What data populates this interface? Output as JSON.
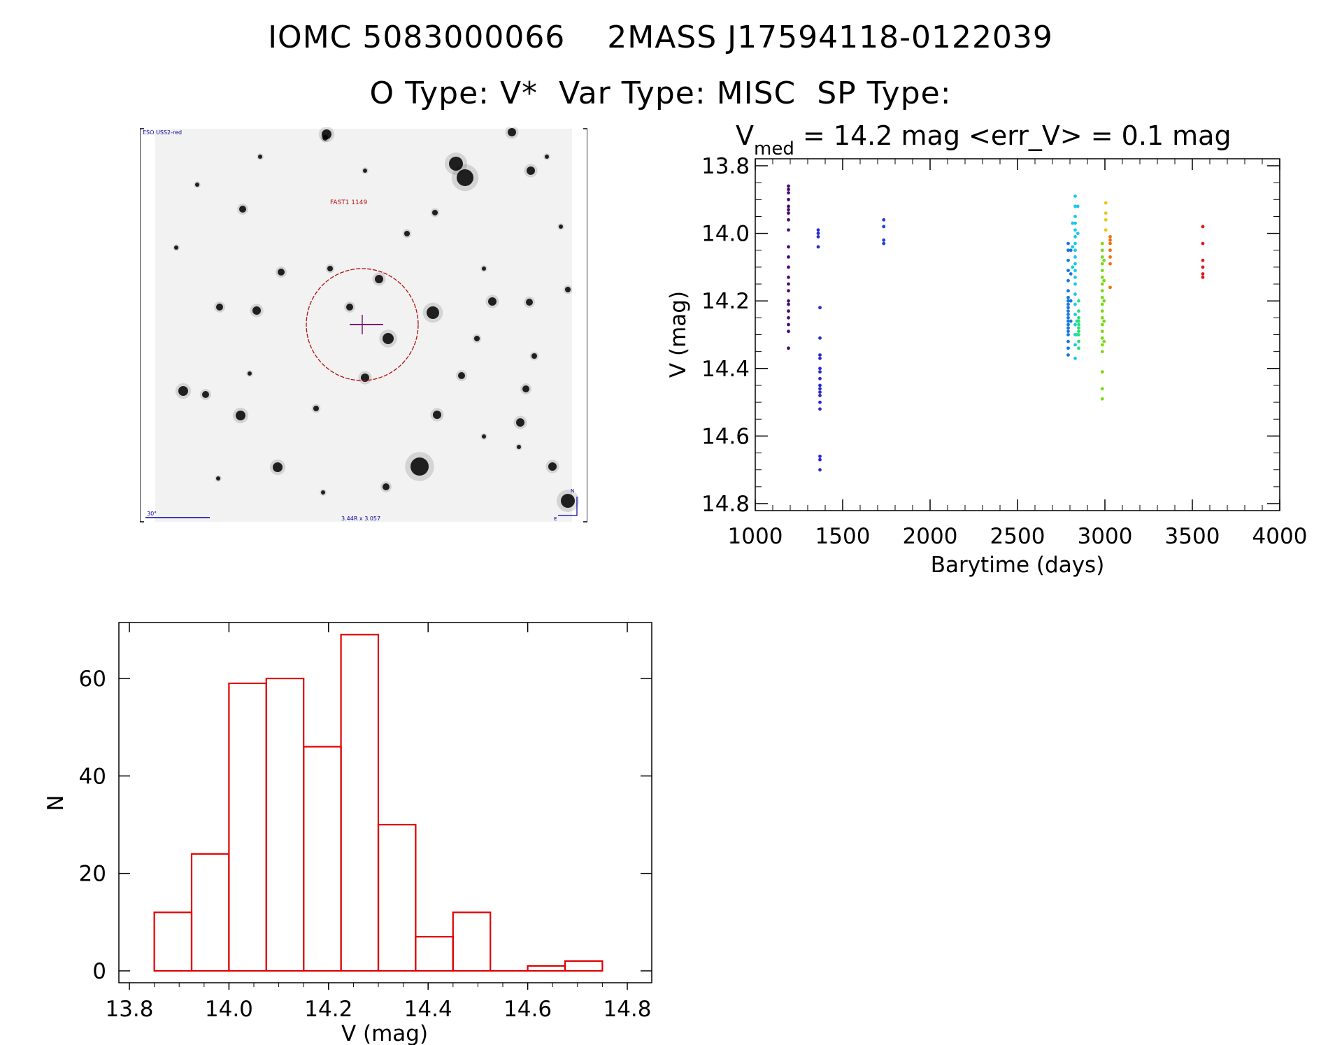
{
  "header": {
    "title_line1": "IOMC 5083000066    2MASS J17594118-0122039",
    "title_line2": "O Type: V*  Var Type: MISC  SP Type:"
  },
  "finder_chart": {
    "survey_label": "ESO USS2-red",
    "target_label": "FAST1 1149",
    "scale_label": "30\"",
    "size_label": "3.44R x 3.057",
    "north_label": "N",
    "east_label": "E",
    "colors": {
      "circle": "#b01010",
      "marker": "#7a1a7a",
      "labels": "#0000a0"
    }
  },
  "chart_data": [
    {
      "type": "scatter",
      "title_prefix": "V",
      "title_subscript": "med",
      "title_rest": " = 14.2 mag <err_V> = 0.1 mag",
      "xlabel": "Barytime (days)",
      "ylabel": "V (mag)",
      "xlim": [
        1000,
        4000
      ],
      "ylim": [
        14.8,
        13.8
      ],
      "y_inverted": true,
      "xticks": [
        1000,
        1500,
        2000,
        2500,
        3000,
        3500,
        4000
      ],
      "xtick_labels": [
        "1000",
        "1500",
        "2000",
        "2500",
        "3000",
        "3500",
        "4000"
      ],
      "yticks": [
        13.8,
        14.0,
        14.2,
        14.4,
        14.6,
        14.8
      ],
      "ytick_labels": [
        "13.8",
        "14.0",
        "14.2",
        "14.4",
        "14.6",
        "14.8"
      ],
      "color_scale": "rainbow by time (purple early → red late)",
      "series": [
        {
          "color": "#4b0a6e",
          "points": [
            [
              1190,
              13.86
            ],
            [
              1190,
              13.87
            ],
            [
              1190,
              13.88
            ],
            [
              1190,
              13.9
            ],
            [
              1190,
              13.92
            ],
            [
              1190,
              13.93
            ],
            [
              1190,
              13.94
            ],
            [
              1190,
              13.96
            ],
            [
              1190,
              13.99
            ],
            [
              1190,
              14.04
            ],
            [
              1190,
              14.07
            ],
            [
              1190,
              14.1
            ],
            [
              1190,
              14.13
            ],
            [
              1190,
              14.15
            ],
            [
              1190,
              14.17
            ],
            [
              1190,
              14.2
            ],
            [
              1190,
              14.21
            ],
            [
              1190,
              14.23
            ],
            [
              1190,
              14.25
            ],
            [
              1190,
              14.27
            ],
            [
              1190,
              14.29
            ],
            [
              1190,
              14.34
            ]
          ]
        },
        {
          "color": "#2a2ad0",
          "points": [
            [
              1360,
              13.99
            ],
            [
              1360,
              14.0
            ],
            [
              1360,
              14.01
            ],
            [
              1360,
              14.04
            ],
            [
              1370,
              14.22
            ],
            [
              1370,
              14.31
            ],
            [
              1370,
              14.36
            ],
            [
              1370,
              14.37
            ],
            [
              1370,
              14.4
            ],
            [
              1370,
              14.41
            ],
            [
              1370,
              14.43
            ],
            [
              1370,
              14.45
            ],
            [
              1370,
              14.46
            ],
            [
              1370,
              14.47
            ],
            [
              1370,
              14.48
            ],
            [
              1370,
              14.5
            ],
            [
              1370,
              14.52
            ],
            [
              1370,
              14.66
            ],
            [
              1370,
              14.67
            ],
            [
              1370,
              14.7
            ]
          ]
        },
        {
          "color": "#1a40d8",
          "points": [
            [
              1735,
              13.96
            ],
            [
              1735,
              13.98
            ],
            [
              1735,
              14.02
            ],
            [
              1735,
              14.03
            ]
          ]
        },
        {
          "color": "#1478e0",
          "points": [
            [
              2790,
              14.03
            ],
            [
              2790,
              14.05
            ],
            [
              2790,
              14.08
            ],
            [
              2790,
              14.11
            ],
            [
              2790,
              14.14
            ],
            [
              2790,
              14.17
            ],
            [
              2790,
              14.19
            ],
            [
              2790,
              14.2
            ],
            [
              2790,
              14.21
            ],
            [
              2790,
              14.22
            ],
            [
              2790,
              14.23
            ],
            [
              2790,
              14.24
            ],
            [
              2790,
              14.25
            ],
            [
              2790,
              14.26
            ],
            [
              2790,
              14.27
            ],
            [
              2790,
              14.28
            ],
            [
              2790,
              14.29
            ],
            [
              2790,
              14.3
            ],
            [
              2790,
              14.32
            ],
            [
              2790,
              14.34
            ],
            [
              2790,
              14.36
            ],
            [
              2805,
              14.05
            ],
            [
              2805,
              14.12
            ],
            [
              2805,
              14.2
            ],
            [
              2805,
              14.26
            ]
          ]
        },
        {
          "color": "#18c8f0",
          "points": [
            [
              2830,
              13.89
            ],
            [
              2830,
              13.92
            ],
            [
              2830,
              13.95
            ],
            [
              2830,
              13.97
            ],
            [
              2830,
              13.99
            ],
            [
              2830,
              14.01
            ],
            [
              2830,
              14.03
            ],
            [
              2830,
              14.05
            ],
            [
              2830,
              14.07
            ],
            [
              2830,
              14.09
            ],
            [
              2830,
              14.11
            ],
            [
              2830,
              14.13
            ],
            [
              2830,
              14.15
            ],
            [
              2830,
              14.18
            ],
            [
              2830,
              14.21
            ],
            [
              2830,
              14.24
            ],
            [
              2830,
              14.27
            ],
            [
              2830,
              14.3
            ],
            [
              2830,
              14.33
            ],
            [
              2830,
              14.37
            ],
            [
              2815,
              13.97
            ],
            [
              2815,
              14.04
            ],
            [
              2815,
              14.1
            ],
            [
              2845,
              13.92
            ],
            [
              2845,
              14.0
            ]
          ]
        },
        {
          "color": "#26e07a",
          "points": [
            [
              2850,
              14.2
            ],
            [
              2850,
              14.23
            ],
            [
              2850,
              14.25
            ],
            [
              2850,
              14.26
            ],
            [
              2850,
              14.27
            ],
            [
              2850,
              14.28
            ],
            [
              2850,
              14.29
            ],
            [
              2850,
              14.3
            ],
            [
              2850,
              14.32
            ],
            [
              2850,
              14.34
            ],
            [
              2840,
              14.26
            ],
            [
              2840,
              14.3
            ]
          ]
        },
        {
          "color": "#7ad818",
          "points": [
            [
              2985,
              14.03
            ],
            [
              2985,
              14.05
            ],
            [
              2985,
              14.07
            ],
            [
              2985,
              14.09
            ],
            [
              2985,
              14.11
            ],
            [
              2985,
              14.13
            ],
            [
              2985,
              14.15
            ],
            [
              2985,
              14.17
            ],
            [
              2985,
              14.19
            ],
            [
              2985,
              14.21
            ],
            [
              2985,
              14.23
            ],
            [
              2985,
              14.25
            ],
            [
              2985,
              14.27
            ],
            [
              2985,
              14.29
            ],
            [
              2985,
              14.31
            ],
            [
              2985,
              14.33
            ],
            [
              2985,
              14.35
            ],
            [
              2985,
              14.41
            ],
            [
              2985,
              14.46
            ],
            [
              2985,
              14.49
            ],
            [
              2995,
              14.08
            ],
            [
              2995,
              14.14
            ],
            [
              2995,
              14.2
            ],
            [
              2995,
              14.26
            ],
            [
              2995,
              14.32
            ]
          ]
        },
        {
          "color": "#e8c818",
          "points": [
            [
              3005,
              13.91
            ],
            [
              3005,
              13.94
            ],
            [
              3005,
              13.96
            ],
            [
              3005,
              13.99
            ]
          ]
        },
        {
          "color": "#f07010",
          "points": [
            [
              3030,
              14.01
            ],
            [
              3030,
              14.02
            ],
            [
              3030,
              14.03
            ],
            [
              3030,
              14.05
            ],
            [
              3030,
              14.07
            ],
            [
              3030,
              14.09
            ],
            [
              3030,
              14.16
            ]
          ]
        },
        {
          "color": "#e01818",
          "points": [
            [
              3560,
              13.98
            ],
            [
              3560,
              14.03
            ],
            [
              3560,
              14.08
            ],
            [
              3560,
              14.1
            ],
            [
              3560,
              14.12
            ],
            [
              3560,
              14.13
            ]
          ]
        }
      ]
    },
    {
      "type": "bar",
      "title": "",
      "xlabel": "V (mag)",
      "ylabel": "N",
      "xlim": [
        13.8,
        14.8
      ],
      "ylim": [
        0,
        70
      ],
      "xticks": [
        13.8,
        14.0,
        14.2,
        14.4,
        14.6,
        14.8
      ],
      "xtick_labels": [
        "13.8",
        "14.0",
        "14.2",
        "14.4",
        "14.6",
        "14.8"
      ],
      "yticks": [
        0,
        20,
        40,
        60
      ],
      "ytick_labels": [
        "0",
        "20",
        "40",
        "60"
      ],
      "bin_edges": [
        13.85,
        13.925,
        14.0,
        14.075,
        14.15,
        14.225,
        14.3,
        14.375,
        14.45,
        14.525,
        14.6,
        14.675,
        14.75
      ],
      "values": [
        12,
        24,
        59,
        60,
        46,
        69,
        30,
        7,
        12,
        0,
        1,
        2
      ],
      "color": "#e00000"
    }
  ]
}
